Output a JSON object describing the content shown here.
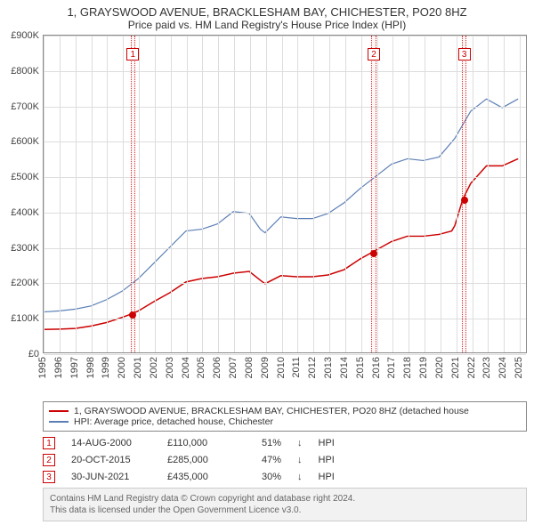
{
  "title": {
    "line1": "1, GRAYSWOOD AVENUE, BRACKLESHAM BAY, CHICHESTER, PO20 8HZ",
    "line2": "Price paid vs. HM Land Registry's House Price Index (HPI)",
    "fontsize_line1": 13,
    "fontsize_line2": 12
  },
  "chart": {
    "type": "line",
    "background_color": "#ffffff",
    "grid_color": "#dddddd",
    "axis_color": "#888888",
    "text_color": "#444444",
    "label_fontsize": 11,
    "x_years": [
      1995,
      1996,
      1997,
      1998,
      1999,
      2000,
      2001,
      2002,
      2003,
      2004,
      2005,
      2006,
      2007,
      2008,
      2009,
      2010,
      2011,
      2012,
      2013,
      2014,
      2015,
      2016,
      2017,
      2018,
      2019,
      2020,
      2021,
      2022,
      2023,
      2024,
      2025
    ],
    "x_range": [
      1995,
      2025.5
    ],
    "y_ticks": [
      0,
      100,
      200,
      300,
      400,
      500,
      600,
      700,
      800,
      900
    ],
    "y_tick_labels": [
      "£0",
      "£100K",
      "£200K",
      "£300K",
      "£400K",
      "£500K",
      "£600K",
      "£700K",
      "£800K",
      "£900K"
    ],
    "ylim": [
      0,
      900
    ],
    "series": [
      {
        "id": "property",
        "label": "1, GRAYSWOOD AVENUE, BRACKLESHAM BAY, CHICHESTER, PO20 8HZ (detached house",
        "color": "#cc0000",
        "line_width": 1.5,
        "points": [
          [
            1995.0,
            65
          ],
          [
            1996.0,
            66
          ],
          [
            1997.0,
            68
          ],
          [
            1998.0,
            75
          ],
          [
            1999.0,
            85
          ],
          [
            2000.0,
            100
          ],
          [
            2000.62,
            110
          ],
          [
            2001.0,
            118
          ],
          [
            2002.0,
            145
          ],
          [
            2003.0,
            170
          ],
          [
            2004.0,
            200
          ],
          [
            2005.0,
            210
          ],
          [
            2006.0,
            215
          ],
          [
            2007.0,
            225
          ],
          [
            2008.0,
            230
          ],
          [
            2008.7,
            205
          ],
          [
            2009.0,
            195
          ],
          [
            2010.0,
            218
          ],
          [
            2011.0,
            215
          ],
          [
            2012.0,
            215
          ],
          [
            2013.0,
            220
          ],
          [
            2014.0,
            235
          ],
          [
            2015.0,
            265
          ],
          [
            2015.8,
            285
          ],
          [
            2016.0,
            290
          ],
          [
            2017.0,
            315
          ],
          [
            2018.0,
            330
          ],
          [
            2019.0,
            330
          ],
          [
            2020.0,
            335
          ],
          [
            2020.8,
            345
          ],
          [
            2021.0,
            360
          ],
          [
            2021.5,
            435
          ],
          [
            2022.0,
            480
          ],
          [
            2023.0,
            530
          ],
          [
            2024.0,
            530
          ],
          [
            2025.0,
            550
          ]
        ]
      },
      {
        "id": "hpi",
        "label": "HPI: Average price, detached house, Chichester",
        "color": "#5b7fb5",
        "line_width": 1.2,
        "points": [
          [
            1995.0,
            115
          ],
          [
            1996.0,
            118
          ],
          [
            1997.0,
            123
          ],
          [
            1998.0,
            132
          ],
          [
            1999.0,
            150
          ],
          [
            2000.0,
            175
          ],
          [
            2001.0,
            210
          ],
          [
            2002.0,
            255
          ],
          [
            2003.0,
            300
          ],
          [
            2004.0,
            345
          ],
          [
            2005.0,
            350
          ],
          [
            2006.0,
            365
          ],
          [
            2007.0,
            400
          ],
          [
            2008.0,
            395
          ],
          [
            2008.7,
            350
          ],
          [
            2009.0,
            340
          ],
          [
            2010.0,
            385
          ],
          [
            2011.0,
            380
          ],
          [
            2012.0,
            380
          ],
          [
            2013.0,
            395
          ],
          [
            2014.0,
            425
          ],
          [
            2015.0,
            465
          ],
          [
            2016.0,
            500
          ],
          [
            2017.0,
            535
          ],
          [
            2018.0,
            550
          ],
          [
            2019.0,
            545
          ],
          [
            2020.0,
            555
          ],
          [
            2021.0,
            608
          ],
          [
            2022.0,
            685
          ],
          [
            2023.0,
            720
          ],
          [
            2024.0,
            695
          ],
          [
            2025.0,
            720
          ]
        ]
      }
    ],
    "markers": [
      {
        "n": "1",
        "x": 2000.62,
        "y": 110
      },
      {
        "n": "2",
        "x": 2015.8,
        "y": 285
      },
      {
        "n": "3",
        "x": 2021.5,
        "y": 435
      }
    ],
    "marker_band_width_years": 0.15,
    "marker_colors": {
      "border": "#cc3333",
      "fill": "rgba(255,0,0,0.04)",
      "flag_border": "#cc0000",
      "flag_text": "#cc0000",
      "dot": "#cc0000"
    }
  },
  "legend": {
    "rows": [
      {
        "color": "#cc0000",
        "label": "1, GRAYSWOOD AVENUE, BRACKLESHAM BAY, CHICHESTER, PO20 8HZ (detached house"
      },
      {
        "color": "#5b7fb5",
        "label": "HPI: Average price, detached house, Chichester"
      }
    ]
  },
  "events": [
    {
      "n": "1",
      "date": "14-AUG-2000",
      "price": "£110,000",
      "pct": "51%",
      "arrow": "↓",
      "ref": "HPI"
    },
    {
      "n": "2",
      "date": "20-OCT-2015",
      "price": "£285,000",
      "pct": "47%",
      "arrow": "↓",
      "ref": "HPI"
    },
    {
      "n": "3",
      "date": "30-JUN-2021",
      "price": "£435,000",
      "pct": "30%",
      "arrow": "↓",
      "ref": "HPI"
    }
  ],
  "footer": {
    "line1": "Contains HM Land Registry data © Crown copyright and database right 2024.",
    "line2": "This data is licensed under the Open Government Licence v3.0.",
    "bg": "#f2f2f2",
    "border": "#cccccc",
    "text_color": "#666666"
  }
}
